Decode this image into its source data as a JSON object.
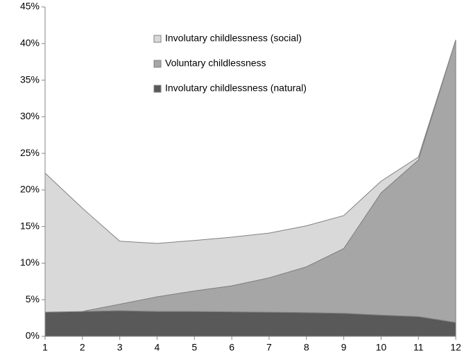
{
  "chart_data": {
    "type": "stacked-area",
    "categories": [
      "1",
      "2",
      "3",
      "4",
      "5",
      "6",
      "7",
      "8",
      "9",
      "10",
      "11",
      "12"
    ],
    "series": [
      {
        "name": "Involutary childlessness (natural)",
        "color": "#595959",
        "values": [
          3.3,
          3.4,
          3.5,
          3.4,
          3.4,
          3.35,
          3.3,
          3.25,
          3.15,
          2.9,
          2.7,
          1.9
        ]
      },
      {
        "name": "Voluntary childlessness",
        "color": "#a6a6a6",
        "values": [
          0,
          0,
          0.9,
          2.0,
          2.8,
          3.55,
          4.7,
          6.25,
          8.85,
          16.7,
          21.4,
          38.6
        ]
      },
      {
        "name": "Involutary childlessness (social)",
        "color": "#d9d9d9",
        "values": [
          19.0,
          14.1,
          8.6,
          7.3,
          6.9,
          6.65,
          6.1,
          5.6,
          4.5,
          1.6,
          0.4,
          0
        ]
      }
    ],
    "ylim": [
      0,
      45
    ],
    "yticks": [
      {
        "value": 0,
        "label": "0%"
      },
      {
        "value": 5,
        "label": "5%"
      },
      {
        "value": 10,
        "label": "10%"
      },
      {
        "value": 15,
        "label": "15%"
      },
      {
        "value": 20,
        "label": "20%"
      },
      {
        "value": 25,
        "label": "25%"
      },
      {
        "value": 30,
        "label": "30%"
      },
      {
        "value": 35,
        "label": "35%"
      },
      {
        "value": 40,
        "label": "40%"
      },
      {
        "value": 45,
        "label": "45%"
      }
    ],
    "legend": "top-center"
  }
}
